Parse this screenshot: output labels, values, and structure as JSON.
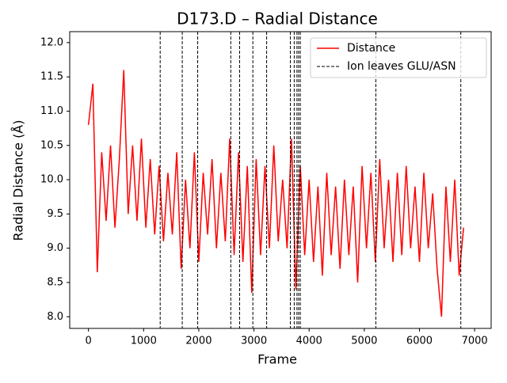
{
  "chart_data": {
    "type": "line",
    "title": "D173.D – Radial Distance",
    "xlabel": "Frame",
    "ylabel": "Radial Distance (Å)",
    "x": [
      0,
      80,
      160,
      240,
      320,
      400,
      480,
      560,
      640,
      720,
      800,
      880,
      960,
      1040,
      1120,
      1200,
      1280,
      1360,
      1440,
      1520,
      1600,
      1680,
      1760,
      1840,
      1920,
      2000,
      2080,
      2160,
      2240,
      2320,
      2400,
      2480,
      2560,
      2640,
      2720,
      2800,
      2880,
      2960,
      3040,
      3120,
      3200,
      3280,
      3360,
      3440,
      3520,
      3600,
      3680,
      3760,
      3840,
      3920,
      4000,
      4080,
      4160,
      4240,
      4320,
      4400,
      4480,
      4560,
      4640,
      4720,
      4800,
      4880,
      4960,
      5040,
      5120,
      5200,
      5280,
      5360,
      5440,
      5520,
      5600,
      5680,
      5760,
      5840,
      5920,
      6000,
      6080,
      6160,
      6240,
      6320,
      6400,
      6480,
      6560,
      6640,
      6720,
      6800
    ],
    "series": [
      {
        "name": "Distance",
        "color": "#ff0000",
        "values": [
          10.8,
          11.4,
          8.65,
          10.4,
          9.4,
          10.5,
          9.3,
          10.3,
          11.6,
          9.5,
          10.5,
          9.4,
          10.6,
          9.3,
          10.3,
          9.2,
          10.2,
          9.1,
          10.1,
          9.2,
          10.4,
          8.7,
          10.0,
          9.0,
          10.4,
          8.8,
          10.1,
          9.2,
          10.3,
          9.0,
          10.1,
          9.1,
          10.6,
          8.9,
          10.4,
          8.8,
          10.2,
          8.35,
          10.3,
          8.9,
          10.2,
          9.0,
          10.5,
          9.1,
          10.0,
          9.0,
          10.6,
          8.4,
          10.2,
          8.9,
          10.0,
          8.8,
          9.9,
          8.6,
          10.1,
          8.9,
          9.9,
          8.7,
          10.0,
          8.9,
          9.9,
          8.5,
          10.2,
          9.0,
          10.1,
          8.8,
          10.3,
          9.0,
          10.0,
          8.8,
          10.1,
          8.9,
          10.2,
          9.0,
          9.9,
          8.8,
          10.1,
          9.0,
          9.8,
          8.7,
          8.0,
          9.9,
          8.8,
          10.0,
          8.6,
          9.3
        ]
      }
    ],
    "vlines": {
      "name": "Ion leaves GLU/ASN",
      "color": "#000000",
      "x": [
        1300,
        1700,
        1980,
        2580,
        2740,
        2980,
        3230,
        3660,
        3730,
        3780,
        3810,
        3840,
        5210,
        6750
      ]
    },
    "xlim": [
      -340,
      7300
    ],
    "ylim": [
      7.83,
      12.16
    ],
    "xticks": [
      0,
      1000,
      2000,
      3000,
      4000,
      5000,
      6000,
      7000
    ],
    "yticks": [
      {
        "value": 8,
        "label": "8.0"
      },
      8.5,
      {
        "value": 9,
        "label": "9.0"
      },
      9.5,
      {
        "value": 10,
        "label": "10.0"
      },
      10.5,
      {
        "value": 11,
        "label": "11.0"
      },
      11.5,
      {
        "value": 12,
        "label": "12.0"
      }
    ],
    "legend": "upper right"
  }
}
